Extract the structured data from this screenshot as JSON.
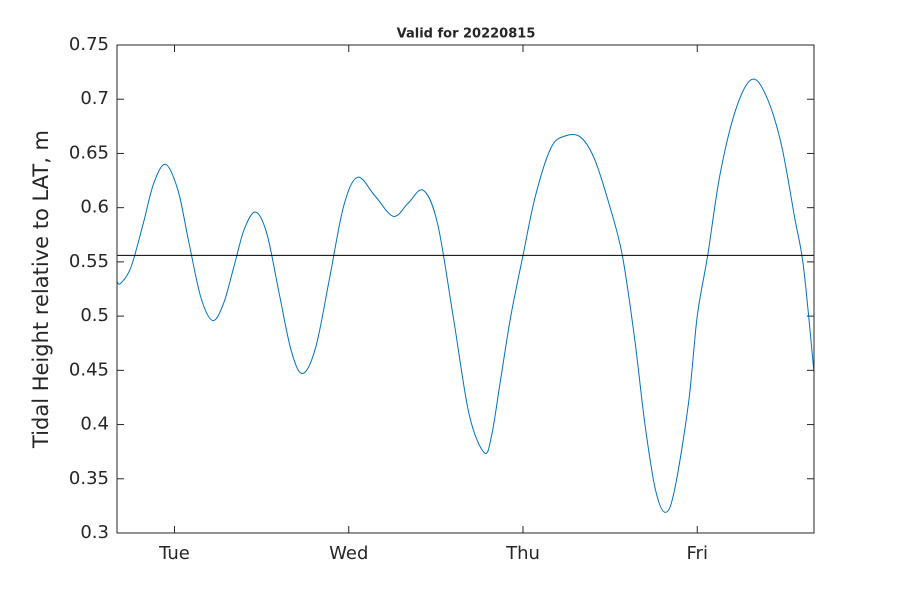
{
  "chart_data": {
    "type": "line",
    "title": "Valid for 20220815",
    "ylabel": "Tidal Height relative to LAT, m",
    "x": [
      0.67,
      0.69,
      0.75,
      0.82,
      0.88,
      0.948,
      1.02,
      1.08,
      1.15,
      1.218,
      1.28,
      1.34,
      1.4,
      1.465,
      1.53,
      1.6,
      1.67,
      1.735,
      1.81,
      1.89,
      1.97,
      2.05,
      2.15,
      2.256,
      2.34,
      2.428,
      2.51,
      2.6,
      2.69,
      2.778,
      2.82,
      2.87,
      2.93,
      3.0,
      3.07,
      3.16,
      3.24,
      3.33,
      3.41,
      3.5,
      3.57,
      3.64,
      3.7,
      3.76,
      3.817,
      3.87,
      3.95,
      4.0,
      4.06,
      4.13,
      4.22,
      4.31,
      4.39,
      4.48,
      4.56,
      4.61,
      4.67
    ],
    "series": [
      {
        "name": "Tidal height",
        "color": "#0072bd",
        "values": [
          0.532,
          0.53,
          0.545,
          0.585,
          0.622,
          0.64,
          0.616,
          0.57,
          0.518,
          0.496,
          0.511,
          0.545,
          0.58,
          0.596,
          0.576,
          0.5215,
          0.468,
          0.447,
          0.471,
          0.535,
          0.601,
          0.628,
          0.611,
          0.592,
          0.604,
          0.616,
          0.585,
          0.499,
          0.41,
          0.374,
          0.39,
          0.44,
          0.5,
          0.556,
          0.61,
          0.655,
          0.666,
          0.665,
          0.645,
          0.6,
          0.556,
          0.48,
          0.4,
          0.34,
          0.319,
          0.34,
          0.42,
          0.5,
          0.556,
          0.63,
          0.69,
          0.718,
          0.705,
          0.66,
          0.59,
          0.545,
          0.448
        ]
      }
    ],
    "reference_line": 0.556,
    "xlim": [
      0.67,
      4.67
    ],
    "xticks": [
      {
        "value": 1,
        "label": "Tue"
      },
      {
        "value": 2,
        "label": "Wed"
      },
      {
        "value": 3,
        "label": "Thu"
      },
      {
        "value": 4,
        "label": "Fri"
      }
    ],
    "ylim": [
      0.3,
      0.75
    ],
    "yticks": [
      0.3,
      0.35,
      0.4,
      0.45,
      0.5,
      0.55,
      0.6,
      0.65,
      0.7,
      0.75
    ],
    "grid": false
  }
}
